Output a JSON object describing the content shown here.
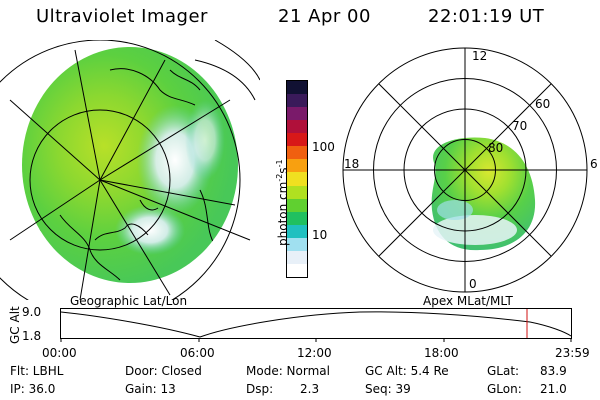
{
  "header": {
    "title": "Ultraviolet Imager",
    "date": "21 Apr 00",
    "time": "22:01:19 UT"
  },
  "colorbar": {
    "label": "photon cm",
    "label_exp1": "-2",
    "label_s": "s",
    "label_exp2": "-1",
    "ticks": [
      "100",
      "10"
    ],
    "colors": [
      "#111133",
      "#3a1a5a",
      "#7a1a6a",
      "#b0103a",
      "#d81818",
      "#f06010",
      "#f8a010",
      "#f0e020",
      "#b0e020",
      "#60d030",
      "#20c060",
      "#20c0c0",
      "#a0e0f0",
      "#e8f0f8",
      "#ffffff"
    ]
  },
  "geo_panel": {
    "label": "Geographic Lat/Lon"
  },
  "apex_panel": {
    "label": "Apex MLat/MLT",
    "mlt_labels": {
      "top": "12",
      "left": "18",
      "right": "6",
      "bottom": "0"
    },
    "lat_labels": [
      "60",
      "70",
      "80"
    ]
  },
  "altitude_plot": {
    "ylabel": "GC Alt",
    "yticks": [
      "9.0",
      "1.8"
    ],
    "xticks": [
      "00:00",
      "06:00",
      "12:00",
      "18:00",
      "23:59"
    ],
    "marker_color": "#d01010"
  },
  "info": {
    "flt": "Flt: LBHL",
    "ip": "IP: 36.0",
    "door": "Door: Closed",
    "gain": "Gain: 13",
    "mode": "Mode: Normal",
    "dsp_label": "Dsp:",
    "dsp_value": "2.3",
    "gc_alt": "GC Alt: 5.4 Re",
    "seq": "Seq: 39",
    "glat_label": "GLat:",
    "glat_value": "83.9",
    "glon_label": "GLon:",
    "glon_value": "21.0"
  }
}
